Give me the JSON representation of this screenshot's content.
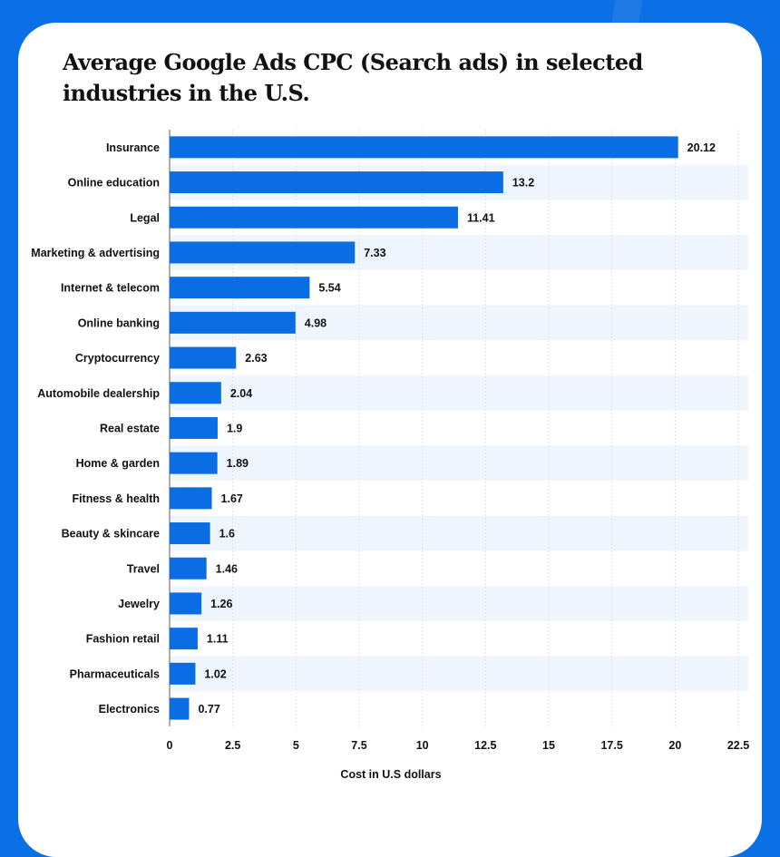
{
  "chart_data": {
    "type": "bar",
    "orientation": "horizontal",
    "title": "Average Google Ads CPC (Search ads) in selected industries in the U.S.",
    "xlabel": "Cost in U.S dollars",
    "ylabel": "",
    "xlim": [
      0,
      22.5
    ],
    "xticks": [
      "0",
      "2.5",
      "5",
      "7.5",
      "10",
      "12.5",
      "15",
      "17.5",
      "20",
      "22.5"
    ],
    "categories": [
      "Insurance",
      "Online education",
      "Legal",
      "Marketing & advertising",
      "Internet & telecom",
      "Online banking",
      "Cryptocurrency",
      "Automobile dealership",
      "Real estate",
      "Home & garden",
      "Fitness & health",
      "Beauty & skincare",
      "Travel",
      "Jewelry",
      "Fashion retail",
      "Pharmaceuticals",
      "Electronics"
    ],
    "values": [
      20.12,
      13.2,
      11.41,
      7.33,
      5.54,
      4.98,
      2.63,
      2.04,
      1.9,
      1.89,
      1.67,
      1.6,
      1.46,
      1.26,
      1.11,
      1.02,
      0.77
    ],
    "labels": [
      "20.12",
      "13.2",
      "11.41",
      "7.33",
      "5.54",
      "4.98",
      "2.63",
      "2.04",
      "1.9",
      "1.89",
      "1.67",
      "1.6",
      "1.46",
      "1.26",
      "1.11",
      "1.02",
      "0.77"
    ],
    "grid": true,
    "colors": {
      "bar": "#0a6de3",
      "band": "#eef5fd",
      "background": "#0b6fe5"
    }
  }
}
